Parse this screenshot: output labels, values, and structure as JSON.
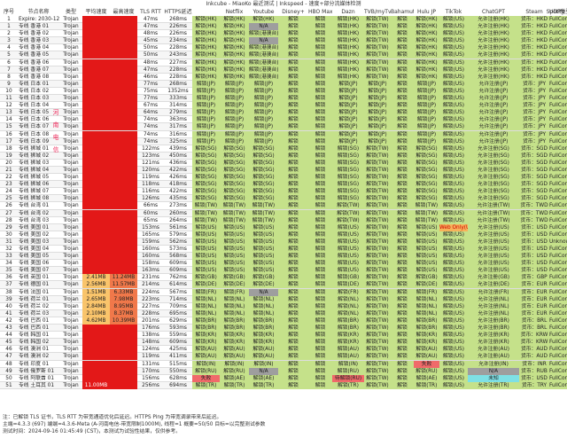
{
  "title": "Inkcube - MiaoKo 最近测试 | Inkspeed - 速度+部分流媒体检测",
  "headers": [
    "序号",
    "节点名称",
    "类型",
    "平均速度",
    "最高速度",
    "TLS RTT",
    "HTTPS延迟",
    "Netflix",
    "Youtube",
    "Disney+",
    "HBO Max",
    "Dazn",
    "TVB/myTvSuper",
    "Bahamut",
    "Hulu JP",
    "TikTok",
    "ChatGPT",
    "Spotify",
    "Steam",
    "UDP类型"
  ],
  "region_label": "河南电信",
  "rows": [
    [
      "1",
      "Expire: 2030-12-30",
      "Trojan",
      "",
      "",
      "47ms",
      "268ms",
      "解锁(HK)",
      "解锁(HK)",
      "解锁(HK)",
      "解锁",
      "解锁",
      "解锁(HK)",
      "解锁(TW)",
      "解锁",
      "解锁(HK)",
      "解锁(US)",
      "允许注册(HK)",
      "货币：HKD",
      "FullCone"
    ],
    [
      "1",
      "专线 香港 01",
      "Trojan",
      "",
      "",
      "47ms",
      "226ms",
      "解锁(HK)",
      "解锁(HK)",
      "N/A",
      "解锁",
      "解锁",
      "解锁(HK)",
      "解锁(TW)",
      "解锁",
      "解锁(HK)",
      "解锁(US)",
      "允许注册(HK)",
      "货币：HKD",
      "FullCone"
    ],
    [
      "2",
      "专线 香港 02",
      "Trojan",
      "",
      "",
      "48ms",
      "226ms",
      "解锁(HK)",
      "解锁(HK)",
      "解锁(港澳台)",
      "解锁",
      "解锁",
      "解锁(HK)",
      "解锁(TW)",
      "解锁",
      "解锁(HK)",
      "解锁(US)",
      "允许注册(HK)",
      "货币：HKD",
      "FullCone"
    ],
    [
      "3",
      "专线 香港 03",
      "Trojan",
      "",
      "",
      "45ms",
      "234ms",
      "解锁(HK)",
      "解锁(HK)",
      "N/A",
      "解锁",
      "解锁",
      "解锁(HK)",
      "解锁(TW)",
      "解锁",
      "解锁(HK)",
      "解锁(US)",
      "允许注册(HK)",
      "货币：HKD",
      "FullCone"
    ],
    [
      "4",
      "专线 香港 04",
      "Trojan",
      "",
      "",
      "50ms",
      "228ms",
      "解锁(HK)",
      "解锁(HK)",
      "解锁(港澳台)",
      "解锁",
      "解锁",
      "解锁(HK)",
      "解锁(TW)",
      "解锁",
      "解锁(HK)",
      "解锁(US)",
      "允许注册(HK)",
      "货币：HKD",
      "FullCone"
    ],
    [
      "5",
      "专线 香港 05",
      "Trojan",
      "",
      "",
      "50ms",
      "243ms",
      "解锁(HK)",
      "解锁(HK)",
      "解锁(港澳台)",
      "解锁",
      "解锁",
      "解锁(HK)",
      "解锁(TW)",
      "解锁",
      "解锁(HK)",
      "解锁(US)",
      "允许注册(HK)",
      "货币：HKD",
      "FullCone"
    ],
    [
      "6",
      "专线 香港 06",
      "Trojan",
      "",
      "",
      "48ms",
      "227ms",
      "解锁(HK)",
      "解锁(HK)",
      "解锁(港澳台)",
      "解锁",
      "解锁",
      "解锁(HK)",
      "解锁(TW)",
      "解锁",
      "解锁(HK)",
      "解锁(US)",
      "允许注册(HK)",
      "货币：HKD",
      "FullCone"
    ],
    [
      "7",
      "专线 香港 07",
      "Trojan",
      "",
      "",
      "47ms",
      "228ms",
      "解锁(HK)",
      "解锁(HK)",
      "解锁(港澳台)",
      "解锁",
      "解锁",
      "解锁(HK)",
      "解锁(TW)",
      "解锁",
      "解锁(HK)",
      "解锁(US)",
      "允许注册(HK)",
      "货币：HKD",
      "FullCone"
    ],
    [
      "8",
      "专线 香港 08",
      "Trojan",
      "",
      "",
      "46ms",
      "228ms",
      "解锁(HK)",
      "解锁(HK)",
      "解锁(港澳台)",
      "解锁",
      "解锁",
      "解锁(HK)",
      "解锁(TW)",
      "解锁",
      "解锁(HK)",
      "解锁(US)",
      "允许注册(HK)",
      "货币：HKD",
      "FullCone"
    ],
    [
      "9",
      "专线 日本 01",
      "Trojan",
      "",
      "",
      "77ms",
      "268ms",
      "解锁(JP)",
      "解锁(JP)",
      "解锁(JP)",
      "解锁",
      "解锁",
      "解锁(JP)",
      "解锁(JP)",
      "解锁",
      "解锁(JP)",
      "解锁(US)",
      "允许注册(JP)",
      "货币：JPY",
      "FullCone"
    ],
    [
      "10",
      "专线 日本 02",
      "Trojan",
      "",
      "",
      "75ms",
      "1352ms",
      "解锁(JP)",
      "解锁(JP)",
      "解锁(JP)",
      "解锁",
      "解锁",
      "解锁(JP)",
      "解锁(JP)",
      "解锁",
      "解锁(JP)",
      "解锁(US)",
      "允许注册(JP)",
      "货币：JPY",
      "FullCone"
    ],
    [
      "11",
      "专线 日本 03",
      "Trojan",
      "",
      "",
      "77ms",
      "333ms",
      "解锁(JP)",
      "解锁(JP)",
      "解锁(JP)",
      "解锁",
      "解锁",
      "解锁(JP)",
      "解锁(JP)",
      "解锁",
      "解锁(JP)",
      "解锁(US)",
      "允许注册(JP)",
      "货币：JPY",
      "FullCone"
    ],
    [
      "12",
      "专线 日本 04",
      "Trojan",
      "",
      "",
      "67ms",
      "314ms",
      "解锁(JP)",
      "解锁(JP)",
      "解锁(JP)",
      "解锁",
      "解锁",
      "解锁(JP)",
      "解锁(JP)",
      "解锁",
      "解锁(JP)",
      "解锁(US)",
      "允许注册(JP)",
      "货币：JPY",
      "FullCone"
    ],
    [
      "13",
      "专线 日本 05",
      "Trojan",
      "",
      "",
      "64ms",
      "279ms",
      "解锁(JP)",
      "解锁(JP)",
      "解锁(JP)",
      "解锁",
      "解锁",
      "解锁(JP)",
      "解锁(JP)",
      "解锁",
      "解锁(JP)",
      "解锁(US)",
      "允许注册(JP)",
      "货币：JPY",
      "FullCone"
    ],
    [
      "14",
      "专线 日本 06",
      "Trojan",
      "",
      "",
      "74ms",
      "363ms",
      "解锁(JP)",
      "解锁(JP)",
      "解锁(JP)",
      "解锁",
      "解锁",
      "解锁(JP)",
      "解锁(JP)",
      "解锁",
      "解锁(JP)",
      "解锁(US)",
      "允许注册(JP)",
      "货币：JPY",
      "FullCone"
    ],
    [
      "15",
      "专线 日本 07",
      "Trojan",
      "",
      "",
      "74ms",
      "317ms",
      "解锁(JP)",
      "解锁(JP)",
      "解锁(JP)",
      "解锁",
      "解锁",
      "解锁(JP)",
      "解锁(JP)",
      "解锁",
      "解锁(JP)",
      "解锁(US)",
      "允许注册(JP)",
      "货币：JPY",
      "FullCone"
    ],
    [
      "16",
      "专线 日本 08",
      "Trojan",
      "",
      "",
      "74ms",
      "316ms",
      "解锁(JP)",
      "解锁(JP)",
      "解锁(JP)",
      "解锁",
      "解锁",
      "解锁(JP)",
      "解锁(JP)",
      "解锁",
      "解锁(JP)",
      "解锁(US)",
      "允许注册(JP)",
      "货币：JPY",
      "FullCone"
    ],
    [
      "17",
      "专线 日本 09",
      "Trojan",
      "",
      "",
      "74ms",
      "325ms",
      "解锁(JP)",
      "解锁(JP)",
      "解锁(JP)",
      "解锁",
      "解锁",
      "解锁(JP)",
      "解锁(JP)",
      "解锁",
      "解锁(JP)",
      "解锁(US)",
      "允许注册(JP)",
      "货币：JPY",
      "FullCone"
    ],
    [
      "18",
      "专线 狮城 01",
      "Trojan",
      "",
      "",
      "122ms",
      "439ms",
      "解锁(SG)",
      "解锁(SG)",
      "解锁(SG)",
      "解锁",
      "解锁",
      "解锁(SG)",
      "解锁(TW)",
      "解锁",
      "解锁(SG)",
      "解锁(US)",
      "允许注册(SG)",
      "货币：SGD",
      "FullCone"
    ],
    [
      "19",
      "专线 狮城 02",
      "Trojan",
      "",
      "",
      "123ms",
      "450ms",
      "解锁(SG)",
      "解锁(SG)",
      "解锁(SG)",
      "解锁",
      "解锁",
      "解锁(SG)",
      "解锁(TW)",
      "解锁",
      "解锁(SG)",
      "解锁(US)",
      "允许注册(SG)",
      "货币：SGD",
      "FullCone"
    ],
    [
      "20",
      "专线 狮城 03",
      "Trojan",
      "",
      "",
      "121ms",
      "436ms",
      "解锁(SG)",
      "解锁(SG)",
      "解锁(SG)",
      "解锁",
      "解锁",
      "解锁(SG)",
      "解锁(TW)",
      "解锁",
      "解锁(SG)",
      "解锁(US)",
      "允许注册(SG)",
      "货币：SGD",
      "FullCone"
    ],
    [
      "21",
      "专线 狮城 04",
      "Trojan",
      "",
      "",
      "120ms",
      "422ms",
      "解锁(SG)",
      "解锁(SG)",
      "解锁(SG)",
      "解锁",
      "解锁",
      "解锁(SG)",
      "解锁(TW)",
      "解锁",
      "解锁(SG)",
      "解锁(US)",
      "允许注册(SG)",
      "货币：SGD",
      "FullCone"
    ],
    [
      "22",
      "专线 狮城 05",
      "Trojan",
      "",
      "",
      "119ms",
      "426ms",
      "解锁(SG)",
      "解锁(SG)",
      "解锁(SG)",
      "解锁",
      "解锁",
      "解锁(SG)",
      "解锁(TW)",
      "解锁",
      "解锁(SG)",
      "解锁(US)",
      "允许注册(SG)",
      "货币：SGD",
      "FullCone"
    ],
    [
      "23",
      "专线 狮城 06",
      "Trojan",
      "",
      "",
      "118ms",
      "418ms",
      "解锁(SG)",
      "解锁(SG)",
      "解锁(SG)",
      "解锁",
      "解锁",
      "解锁(SG)",
      "解锁(TW)",
      "解锁",
      "解锁(SG)",
      "解锁(US)",
      "允许注册(SG)",
      "货币：SGD",
      "FullCone"
    ],
    [
      "24",
      "专线 狮城 07",
      "Trojan",
      "",
      "",
      "116ms",
      "422ms",
      "解锁(SG)",
      "解锁(SG)",
      "解锁(SG)",
      "解锁",
      "解锁",
      "解锁(SG)",
      "解锁(TW)",
      "解锁",
      "解锁(SG)",
      "解锁(US)",
      "允许注册(SG)",
      "货币：SGD",
      "FullCone"
    ],
    [
      "25",
      "专线 狮城 08",
      "Trojan",
      "",
      "",
      "126ms",
      "435ms",
      "解锁(SG)",
      "解锁(SG)",
      "解锁(SG)",
      "解锁",
      "解锁",
      "解锁(SG)",
      "解锁(TW)",
      "解锁",
      "解锁(SG)",
      "解锁(US)",
      "允许注册(SG)",
      "货币：SGD",
      "FullCone"
    ],
    [
      "26",
      "专线 台湾 01",
      "Trojan",
      "",
      "",
      "66ms",
      "273ms",
      "解锁(TW)",
      "解锁(TW)",
      "解锁(TW)",
      "解锁",
      "解锁",
      "解锁(TW)",
      "解锁(TW)",
      "解锁",
      "解锁(TW)",
      "解锁(US)",
      "允许注册(TW)",
      "货币：TWD",
      "FullCone"
    ],
    [
      "27",
      "专线 台湾 02",
      "Trojan",
      "",
      "",
      "60ms",
      "260ms",
      "解锁(TW)",
      "解锁(TW)",
      "解锁(TW)",
      "解锁",
      "解锁",
      "解锁(TW)",
      "解锁(TW)",
      "解锁",
      "解锁(TW)",
      "解锁(US)",
      "允许注册(TW)",
      "货币：TWD",
      "FullCone"
    ],
    [
      "28",
      "专线 台湾 03",
      "Trojan",
      "",
      "",
      "65ms",
      "264ms",
      "解锁(TW)",
      "解锁(TW)",
      "解锁(TW)",
      "解锁",
      "解锁",
      "解锁(TW)",
      "解锁(TW)",
      "解锁",
      "解锁(TW)",
      "解锁(US)",
      "允许注册(TW)",
      "货币：TWD",
      "FullCone"
    ],
    [
      "29",
      "专线 美国 01",
      "Trojan",
      "",
      "",
      "153ms",
      "561ms",
      "解锁(US)",
      "解锁(US)",
      "解锁(US)",
      "解锁",
      "解锁",
      "解锁(US)",
      "解锁(TW)",
      "解锁",
      "解锁(US)",
      "Web Only(US)",
      "允许注册(US)",
      "货币：USD",
      "FullCone"
    ],
    [
      "30",
      "专线 美国 02",
      "Trojan",
      "",
      "",
      "165ms",
      "579ms",
      "解锁(US)",
      "解锁(US)",
      "解锁(US)",
      "解锁",
      "解锁",
      "解锁(US)",
      "解锁(TW)",
      "解锁",
      "解锁(US)",
      "解锁(US)",
      "允许注册(US)",
      "货币：USD",
      "FullCone"
    ],
    [
      "31",
      "专线 美国 03",
      "Trojan",
      "",
      "",
      "159ms",
      "562ms",
      "解锁(US)",
      "解锁(US)",
      "解锁(US)",
      "解锁",
      "解锁",
      "解锁(US)",
      "解锁(TW)",
      "解锁",
      "解锁(US)",
      "解锁(US)",
      "允许注册(US)",
      "货币：USD",
      "Unknown"
    ],
    [
      "32",
      "专线 美国 04",
      "Trojan",
      "",
      "",
      "160ms",
      "573ms",
      "解锁(US)",
      "解锁(US)",
      "解锁(US)",
      "解锁",
      "解锁",
      "解锁(US)",
      "解锁(TW)",
      "解锁",
      "解锁(US)",
      "解锁(US)",
      "允许注册(US)",
      "货币：USD",
      "FullCone"
    ],
    [
      "33",
      "专线 美国 05",
      "Trojan",
      "",
      "",
      "160ms",
      "568ms",
      "解锁(US)",
      "解锁(US)",
      "解锁(US)",
      "解锁",
      "解锁",
      "解锁(US)",
      "解锁(TW)",
      "解锁",
      "解锁(US)",
      "解锁(US)",
      "允许注册(US)",
      "货币：USD",
      "FullCone"
    ],
    [
      "34",
      "专线 美国 06",
      "Trojan",
      "",
      "",
      "158ms",
      "609ms",
      "解锁(US)",
      "解锁(US)",
      "解锁(US)",
      "解锁",
      "解锁",
      "解锁(US)",
      "解锁(TW)",
      "解锁",
      "解锁(US)",
      "解锁(US)",
      "允许注册(US)",
      "货币：USD",
      "FullCone"
    ],
    [
      "35",
      "专线 美国 07",
      "Trojan",
      "",
      "",
      "163ms",
      "609ms",
      "解锁(US)",
      "解锁(US)",
      "解锁(US)",
      "解锁",
      "解锁",
      "解锁(US)",
      "解锁(TW)",
      "解锁",
      "解锁(US)",
      "解锁(US)",
      "允许注册(US)",
      "货币：USD",
      "FullCone"
    ],
    [
      "36",
      "专线 英国 01",
      "Trojan",
      "2.41MB",
      "11.24MB",
      "231ms",
      "762ms",
      "解锁(GB)",
      "解锁(GB)",
      "解锁(GB)",
      "解锁",
      "解锁",
      "解锁(GB)",
      "解锁(TW)",
      "解锁",
      "解锁(GB)",
      "解锁(US)",
      "允许注册(GB)",
      "货币：GBP",
      "FullCone"
    ],
    [
      "37",
      "专线 德国 01",
      "Trojan",
      "2.56MB",
      "11.57MB",
      "214ms",
      "614ms",
      "解锁(DE)",
      "解锁(DE)",
      "解锁(DE)",
      "解锁",
      "解锁",
      "解锁(DE)",
      "解锁(TW)",
      "解锁",
      "解锁(DE)",
      "解锁(US)",
      "允许注册(DE)",
      "货币：EUR",
      "FullCone"
    ],
    [
      "38",
      "专线 法国 01",
      "Trojan",
      "1.51MB",
      "6.33MB",
      "224ms",
      "567ms",
      "解锁(FR)",
      "解锁(FR)",
      "N/A",
      "解锁",
      "解锁",
      "解锁(FR)",
      "解锁(TW)",
      "解锁",
      "解锁(FR)",
      "解锁(US)",
      "允许注册(FR)",
      "货币：EUR",
      "FullCone"
    ],
    [
      "39",
      "专线 荷兰 01",
      "Trojan",
      "2.65MB",
      "7.98MB",
      "223ms",
      "714ms",
      "解锁(NL)",
      "解锁(NL)",
      "解锁(NL)",
      "解锁",
      "解锁",
      "解锁(NL)",
      "解锁(TW)",
      "解锁",
      "解锁(NL)",
      "解锁(US)",
      "允许注册(NL)",
      "货币：EUR",
      "FullCone"
    ],
    [
      "40",
      "专线 荷兰 02",
      "Trojan",
      "2.84MB",
      "8.95MB",
      "227ms",
      "709ms",
      "解锁(NL)",
      "解锁(NL)",
      "解锁(NL)",
      "解锁",
      "解锁",
      "解锁(NL)",
      "解锁(TW)",
      "解锁",
      "解锁(NL)",
      "解锁(US)",
      "允许注册(NL)",
      "货币：EUR",
      "FullCone"
    ],
    [
      "41",
      "专线 荷兰 03",
      "Trojan",
      "2.10MB",
      "8.37MB",
      "228ms",
      "695ms",
      "解锁(NL)",
      "解锁(NL)",
      "解锁(NL)",
      "解锁",
      "解锁",
      "解锁(NL)",
      "解锁(TW)",
      "解锁",
      "解锁(NL)",
      "解锁(US)",
      "允许注册(NL)",
      "货币：EUR",
      "FullCone"
    ],
    [
      "42",
      "专线 巴西 01",
      "Trojan",
      "4.62MB",
      "10.39MB",
      "201ms",
      "629ms",
      "解锁(BR)",
      "解锁(BR)",
      "解锁(BR)",
      "解锁",
      "解锁",
      "解锁(BR)",
      "解锁(TW)",
      "解锁",
      "解锁(BR)",
      "解锁(US)",
      "允许注册(BR)",
      "货币：BRL",
      "FullCone"
    ],
    [
      "43",
      "专线 巴西 01",
      "Trojan",
      "",
      "",
      "176ms",
      "593ms",
      "解锁(BR)",
      "解锁(BR)",
      "解锁(BR)",
      "解锁",
      "解锁",
      "解锁(BR)",
      "解锁(TW)",
      "解锁",
      "解锁(BR)",
      "解锁(US)",
      "允许注册(BR)",
      "货币：BRL",
      "FullCone"
    ],
    [
      "44",
      "专线 韩国 01",
      "Trojan",
      "",
      "",
      "138ms",
      "559ms",
      "解锁(KR)",
      "解锁(KR)",
      "解锁(KR)",
      "解锁",
      "解锁",
      "解锁(KR)",
      "解锁(TW)",
      "解锁",
      "解锁(KR)",
      "解锁(US)",
      "允许注册(KR)",
      "货币：KRW",
      "FullCone"
    ],
    [
      "45",
      "专线 韩国 02",
      "Trojan",
      "",
      "",
      "148ms",
      "609ms",
      "解锁(KR)",
      "解锁(KR)",
      "解锁(KR)",
      "解锁",
      "解锁",
      "解锁(KR)",
      "解锁(TW)",
      "解锁",
      "解锁(KR)",
      "解锁(US)",
      "允许注册(KR)",
      "货币：KRW",
      "FullCone"
    ],
    [
      "46",
      "专线 澳洲 01",
      "Trojan",
      "",
      "",
      "124ms",
      "425ms",
      "解锁(AU)",
      "解锁(AU)",
      "解锁(AU)",
      "解锁",
      "解锁",
      "解锁(AU)",
      "解锁(TW)",
      "解锁",
      "解锁(AU)",
      "解锁(US)",
      "允许注册(AU)",
      "货币：AUD",
      "FullCone"
    ],
    [
      "47",
      "专线 澳洲 02",
      "Trojan",
      "",
      "",
      "119ms",
      "411ms",
      "解锁(AU)",
      "解锁(AU)",
      "解锁(AU)",
      "解锁",
      "解锁",
      "解锁(AU)",
      "解锁(TW)",
      "解锁",
      "解锁(AU)",
      "解锁(US)",
      "允许注册(AU)",
      "货币：AUD",
      "FullCone"
    ],
    [
      "48",
      "专线 印度 01",
      "Trojan",
      "",
      "",
      "131ms",
      "515ms",
      "解锁(IN)",
      "解锁(IN)",
      "解锁(IN)",
      "解锁",
      "解锁",
      "解锁(IN)",
      "解锁(TW)",
      "解锁",
      "失败",
      "解锁(US)",
      "允许注册(IN)",
      "货币：INR",
      "FullCone"
    ],
    [
      "49",
      "专线 俄罗斯 01",
      "Trojan",
      "",
      "",
      "170ms",
      "550ms",
      "解锁(RU)",
      "解锁(RU)",
      "N/A",
      "解锁",
      "解锁",
      "解锁(RU)",
      "解锁(TW)",
      "解锁",
      "解锁(RU)",
      "解锁(US)",
      "N/A",
      "货币：RUB",
      "FullCone"
    ],
    [
      "50",
      "专线 阿联酋 01",
      "Trojan",
      "",
      "",
      "156ms",
      "628ms",
      "失败",
      "解锁(AE)",
      "解锁(AE)",
      "解锁",
      "解锁",
      "待解锁(RU)",
      "解锁(TW)",
      "解锁",
      "解锁(AE)",
      "解锁(US)",
      "未知",
      "货币：USD",
      "FullCone"
    ],
    [
      "51",
      "专线 土耳其 01",
      "Trojan",
      "11.00MB",
      "",
      "256ms",
      "694ms",
      "解锁(TR)",
      "解锁(TR)",
      "解锁(TR)",
      "解锁",
      "解锁",
      "解锁(TR)",
      "解锁(TW)",
      "解锁",
      "解锁(TR)",
      "解锁(US)",
      "允许注册(TR)",
      "货币：TRY",
      "FullCone"
    ]
  ],
  "footer": [
    "注：已解锁 TLS 证书，TLS RTT 为带宽通道优化后延迟。HTTPS Ping 为带宽调录带来后延迟。",
    "主端=4.3.3 (697) 端端=4.3.6-Meta (A-河南电信-带宽限制1000M), 线程=1 概要=50/50 目标=以完整测试参数",
    "测试时间：2024-09-16 01:45:49 (CST)，本测试为试验性结果，仅供参考。"
  ]
}
